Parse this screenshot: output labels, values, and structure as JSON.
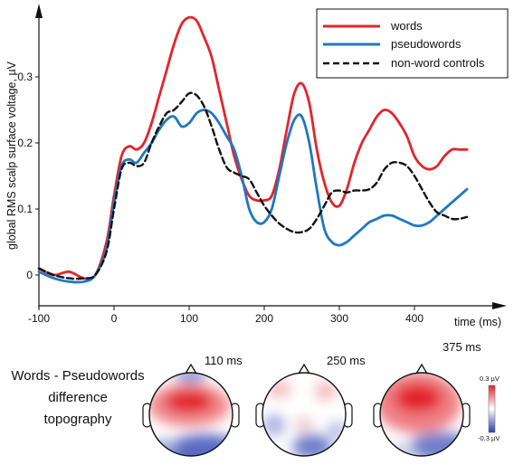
{
  "chart_data": {
    "type": "line",
    "ylabel": "global RMS scalp surface voltage, µV",
    "xlabel": "time (ms)",
    "xlim": [
      -100,
      480
    ],
    "ylim": [
      -0.03,
      0.4
    ],
    "xticks": [
      -100,
      0,
      100,
      200,
      300,
      400
    ],
    "yticks": [
      0,
      0.1,
      0.2,
      0.3
    ],
    "ytick_labels": [
      "0",
      "0.1",
      "0.2",
      "0.3"
    ],
    "legend_position": "top-right",
    "series": [
      {
        "name": "words",
        "color": "#e3242b",
        "dash": false,
        "x": [
          -100,
          -80,
          -60,
          -40,
          -25,
          -10,
          0,
          10,
          20,
          30,
          40,
          50,
          60,
          70,
          80,
          90,
          100,
          110,
          120,
          130,
          140,
          150,
          160,
          170,
          180,
          190,
          200,
          210,
          220,
          230,
          240,
          250,
          260,
          270,
          280,
          290,
          300,
          310,
          320,
          330,
          340,
          350,
          360,
          370,
          380,
          390,
          400,
          410,
          420,
          430,
          440,
          450,
          460,
          470
        ],
        "y": [
          0.01,
          0.0,
          0.005,
          -0.005,
          0.0,
          0.05,
          0.12,
          0.18,
          0.195,
          0.19,
          0.2,
          0.23,
          0.27,
          0.31,
          0.35,
          0.38,
          0.39,
          0.385,
          0.36,
          0.33,
          0.28,
          0.23,
          0.18,
          0.145,
          0.12,
          0.113,
          0.113,
          0.12,
          0.16,
          0.22,
          0.275,
          0.29,
          0.26,
          0.19,
          0.14,
          0.11,
          0.105,
          0.13,
          0.17,
          0.2,
          0.22,
          0.24,
          0.25,
          0.245,
          0.23,
          0.21,
          0.18,
          0.165,
          0.16,
          0.165,
          0.18,
          0.19,
          0.19,
          0.19
        ]
      },
      {
        "name": "pseudowords",
        "color": "#1f78c1",
        "dash": false,
        "x": [
          -100,
          -80,
          -60,
          -40,
          -25,
          -10,
          0,
          10,
          20,
          30,
          40,
          50,
          60,
          70,
          80,
          90,
          100,
          110,
          120,
          130,
          140,
          150,
          160,
          170,
          180,
          190,
          200,
          210,
          220,
          230,
          240,
          250,
          260,
          270,
          280,
          290,
          300,
          310,
          320,
          330,
          340,
          350,
          360,
          370,
          380,
          390,
          400,
          410,
          420,
          430,
          440,
          450,
          460,
          470
        ],
        "y": [
          0.005,
          -0.005,
          -0.01,
          -0.01,
          0.0,
          0.04,
          0.11,
          0.165,
          0.175,
          0.17,
          0.185,
          0.2,
          0.22,
          0.235,
          0.24,
          0.225,
          0.23,
          0.245,
          0.25,
          0.245,
          0.23,
          0.21,
          0.19,
          0.15,
          0.1,
          0.08,
          0.08,
          0.1,
          0.15,
          0.2,
          0.235,
          0.24,
          0.2,
          0.13,
          0.07,
          0.05,
          0.045,
          0.05,
          0.06,
          0.07,
          0.08,
          0.085,
          0.09,
          0.09,
          0.085,
          0.08,
          0.075,
          0.075,
          0.08,
          0.09,
          0.1,
          0.11,
          0.12,
          0.13
        ]
      },
      {
        "name": "non-word controls",
        "color": "#111111",
        "dash": true,
        "x": [
          -100,
          -80,
          -60,
          -40,
          -25,
          -10,
          0,
          10,
          20,
          30,
          40,
          50,
          60,
          70,
          80,
          90,
          100,
          110,
          120,
          130,
          140,
          150,
          160,
          170,
          180,
          190,
          200,
          210,
          220,
          230,
          240,
          250,
          260,
          270,
          280,
          290,
          300,
          310,
          320,
          330,
          340,
          350,
          360,
          370,
          380,
          390,
          400,
          410,
          420,
          430,
          440,
          450,
          460,
          470
        ],
        "y": [
          0.01,
          0.0,
          -0.005,
          -0.005,
          0.0,
          0.035,
          0.1,
          0.16,
          0.17,
          0.165,
          0.17,
          0.2,
          0.225,
          0.245,
          0.25,
          0.262,
          0.275,
          0.272,
          0.255,
          0.225,
          0.19,
          0.163,
          0.155,
          0.15,
          0.145,
          0.125,
          0.105,
          0.09,
          0.078,
          0.07,
          0.065,
          0.065,
          0.07,
          0.085,
          0.105,
          0.125,
          0.128,
          0.125,
          0.128,
          0.128,
          0.13,
          0.14,
          0.16,
          0.17,
          0.17,
          0.165,
          0.15,
          0.13,
          0.11,
          0.095,
          0.09,
          0.085,
          0.085,
          0.088
        ]
      }
    ]
  },
  "topography": {
    "title": [
      "Words - Pseudowords",
      "difference",
      "topography"
    ],
    "times": [
      "110 ms",
      "250 ms",
      "375 ms"
    ],
    "scale_max": "0.3 µV",
    "scale_min": "-0.3 µV",
    "colors": {
      "positive": "#e3242b",
      "negative": "#2a3fae",
      "neutral": "#ffffff"
    }
  }
}
